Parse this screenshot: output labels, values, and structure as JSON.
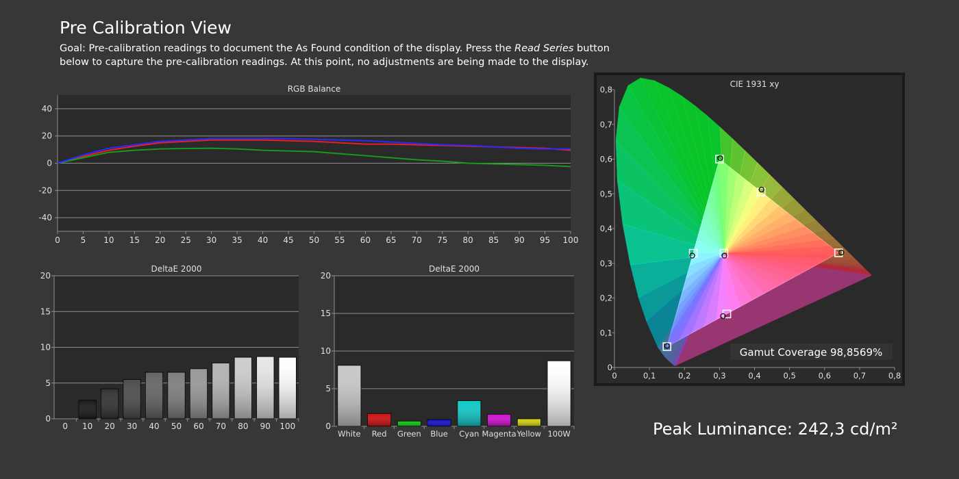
{
  "page": {
    "title": "Pre Calibration View",
    "goal_prefix": "Goal: Pre-calibration readings to document the As Found condition of the display. Press the ",
    "goal_emphasis": "Read Series",
    "goal_suffix": " button below to capture the pre-calibration readings. At this point, no adjustments are being made to the display.",
    "peak_luminance": "Peak Luminance: 242,3 cd/m²"
  },
  "colors": {
    "background": "#373737",
    "plot_bg": "#2a2a2a",
    "grid": "#8f8f8f",
    "red": "#e82020",
    "green": "#1a9a1a",
    "blue": "#2a2aff"
  },
  "chart_data": [
    {
      "id": "rgb-balance",
      "type": "line",
      "title": "RGB Balance",
      "x": [
        0,
        5,
        10,
        15,
        20,
        25,
        30,
        35,
        40,
        45,
        50,
        55,
        60,
        65,
        70,
        75,
        80,
        85,
        90,
        95,
        100
      ],
      "xlim": [
        0,
        100
      ],
      "ylim": [
        -50,
        50
      ],
      "yticks": [
        -40,
        -20,
        0,
        20,
        40
      ],
      "xticks": [
        0,
        5,
        10,
        15,
        20,
        25,
        30,
        35,
        40,
        45,
        50,
        55,
        60,
        65,
        70,
        75,
        80,
        85,
        90,
        95,
        100
      ],
      "series": [
        {
          "color": "#e82020",
          "values": [
            0,
            5,
            9.5,
            12.5,
            15,
            16,
            17,
            17,
            17,
            16.5,
            16,
            15,
            14,
            14,
            13.5,
            13,
            12.5,
            12,
            11.5,
            11,
            9.5
          ]
        },
        {
          "color": "#1a9a1a",
          "values": [
            0,
            4,
            8,
            9.5,
            10.5,
            10.8,
            11,
            10.5,
            9.5,
            9,
            8.5,
            7,
            5.5,
            4,
            2.5,
            1.5,
            0,
            -0.5,
            -1,
            -1.5,
            -2.5
          ]
        },
        {
          "color": "#2a2aff",
          "values": [
            0,
            6,
            11,
            13.5,
            16,
            17,
            18,
            18,
            18,
            18,
            17.5,
            17,
            16.5,
            15.5,
            14.5,
            13.5,
            13,
            12,
            11,
            10.5,
            10.5
          ]
        }
      ],
      "grid": true
    },
    {
      "id": "delta-grayscale",
      "type": "bar",
      "title": "DeltaE 2000",
      "categories": [
        "0",
        "10",
        "20",
        "30",
        "40",
        "50",
        "60",
        "70",
        "80",
        "90",
        "100"
      ],
      "values": [
        0,
        2.6,
        4.2,
        5.5,
        6.5,
        6.5,
        7.0,
        7.8,
        8.6,
        8.7,
        8.6
      ],
      "colors": [
        "#000000",
        "#1a1a1a",
        "#333333",
        "#4d4d4d",
        "#666666",
        "#808080",
        "#999999",
        "#b3b3b3",
        "#cccccc",
        "#e6e6e6",
        "#ffffff"
      ],
      "ylim": [
        0,
        20
      ],
      "yticks": [
        0,
        5,
        10,
        15,
        20
      ],
      "grid": true
    },
    {
      "id": "delta-colors",
      "type": "bar",
      "title": "DeltaE 2000",
      "categories": [
        "White",
        "Red",
        "Green",
        "Blue",
        "Cyan",
        "Magenta",
        "Yellow",
        "100W"
      ],
      "values": [
        8.1,
        1.7,
        0.7,
        0.9,
        3.4,
        1.6,
        1.0,
        8.7
      ],
      "colors": [
        "#c8c8c8",
        "#d01010",
        "#10c010",
        "#1010d0",
        "#10c8c8",
        "#d010d0",
        "#d0d010",
        "#ffffff"
      ],
      "ylim": [
        0,
        20
      ],
      "yticks": [
        0,
        5,
        10,
        15,
        20
      ],
      "grid": true
    },
    {
      "id": "cie-1931",
      "type": "scatter",
      "title": "CIE 1931 xy",
      "xlim": [
        0,
        0.8
      ],
      "ylim": [
        0,
        0.8
      ],
      "xticks": [
        "0",
        "0,1",
        "0,2",
        "0,3",
        "0,4",
        "0,5",
        "0,6",
        "0,7",
        "0,8"
      ],
      "yticks": [
        "0",
        "0,1",
        "0,2",
        "0,3",
        "0,4",
        "0,5",
        "0,6",
        "0,7",
        "0,8"
      ],
      "targets": [
        {
          "x": 0.64,
          "y": 0.33
        },
        {
          "x": 0.3,
          "y": 0.6
        },
        {
          "x": 0.15,
          "y": 0.06
        },
        {
          "x": 0.225,
          "y": 0.329
        },
        {
          "x": 0.321,
          "y": 0.154
        },
        {
          "x": 0.419,
          "y": 0.505
        },
        {
          "x": 0.3127,
          "y": 0.329
        }
      ],
      "measured": [
        {
          "x": 0.648,
          "y": 0.331
        },
        {
          "x": 0.302,
          "y": 0.603
        },
        {
          "x": 0.15,
          "y": 0.062
        },
        {
          "x": 0.222,
          "y": 0.322
        },
        {
          "x": 0.31,
          "y": 0.148
        },
        {
          "x": 0.42,
          "y": 0.512
        },
        {
          "x": 0.314,
          "y": 0.322
        }
      ],
      "gamut_coverage": "Gamut Coverage 98,8569%"
    }
  ]
}
